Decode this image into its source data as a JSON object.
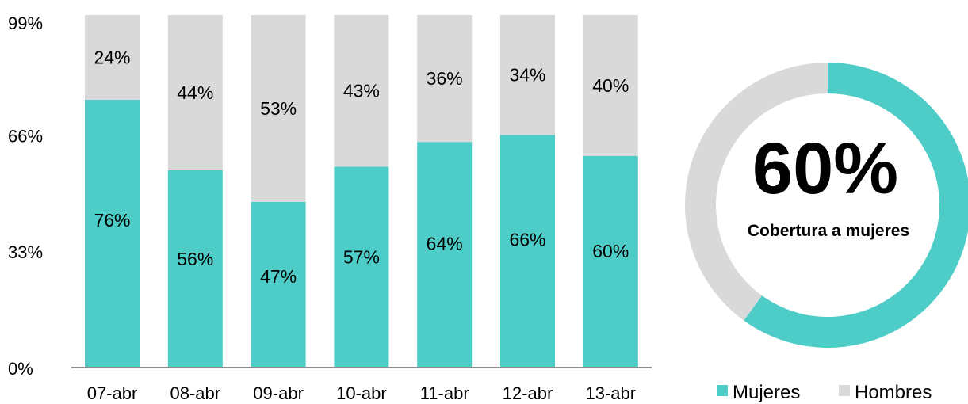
{
  "chart_data": [
    {
      "type": "bar",
      "stacked": true,
      "categories": [
        "07-abr",
        "08-abr",
        "09-abr",
        "10-abr",
        "11-abr",
        "12-abr",
        "13-abr"
      ],
      "series": [
        {
          "name": "Mujeres",
          "color": "#4ECDC8",
          "values": [
            76,
            56,
            47,
            57,
            64,
            66,
            60
          ],
          "labels": [
            "76%",
            "56%",
            "47%",
            "57%",
            "64%",
            "66%",
            "60%"
          ]
        },
        {
          "name": "Hombres",
          "color": "#D9D9D9",
          "values": [
            24,
            44,
            53,
            43,
            36,
            34,
            40
          ],
          "labels": [
            "24%",
            "44%",
            "53%",
            "43%",
            "36%",
            "34%",
            "40%"
          ]
        }
      ],
      "y_ticks": [
        {
          "value": 0,
          "label": "0%"
        },
        {
          "value": 33,
          "label": "33%"
        },
        {
          "value": 66,
          "label": "66%"
        },
        {
          "value": 99,
          "label": "99%"
        }
      ],
      "ylim": [
        0,
        100
      ],
      "grid": false
    },
    {
      "type": "pie",
      "donut": true,
      "center_value": "60%",
      "center_label": "Cobertura a mujeres",
      "slices": [
        {
          "name": "Mujeres",
          "value": 60,
          "color": "#4ECDC8"
        },
        {
          "name": "Hombres",
          "value": 40,
          "color": "#D9D9D9"
        }
      ],
      "legend": {
        "placement": "bottom",
        "items": [
          {
            "label": "Mujeres",
            "color": "#4ECDC8"
          },
          {
            "label": "Hombres",
            "color": "#D9D9D9"
          }
        ]
      }
    }
  ]
}
